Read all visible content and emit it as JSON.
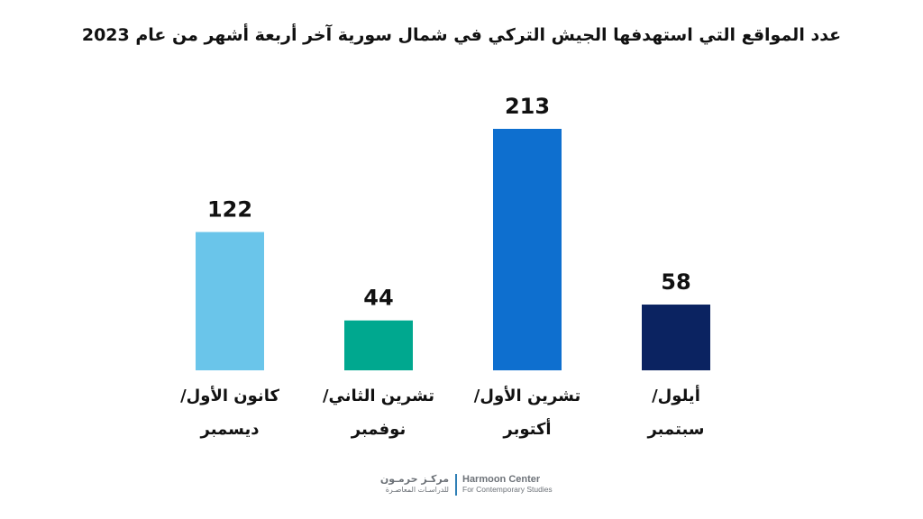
{
  "chart_data": {
    "type": "bar",
    "title": "عدد المواقع التي استهدفها الجيش التركي في شمال سورية آخر أربعة أشهر من عام 2023",
    "categories": [
      [
        "كانون الأول/",
        "ديسمبر"
      ],
      [
        "تشرين الثاني/",
        "نوفمبر"
      ],
      [
        "تشرين الأول/",
        "أكتوبر"
      ],
      [
        "أيلول/",
        "سبتمبر"
      ]
    ],
    "values": [
      122,
      44,
      213,
      58
    ],
    "colors": [
      "#6ac5ea",
      "#00a88f",
      "#0e6fcf",
      "#0b2361"
    ],
    "ylim": [
      0,
      213
    ],
    "grid": false,
    "legend": false,
    "data_labels": true
  },
  "logo": {
    "ar_name": "مركـز حرمـون",
    "ar_sub": "للدراسـات المعاصـرة",
    "en_name": "Harmoon Center",
    "en_sub": "For Contemporary Studies"
  }
}
